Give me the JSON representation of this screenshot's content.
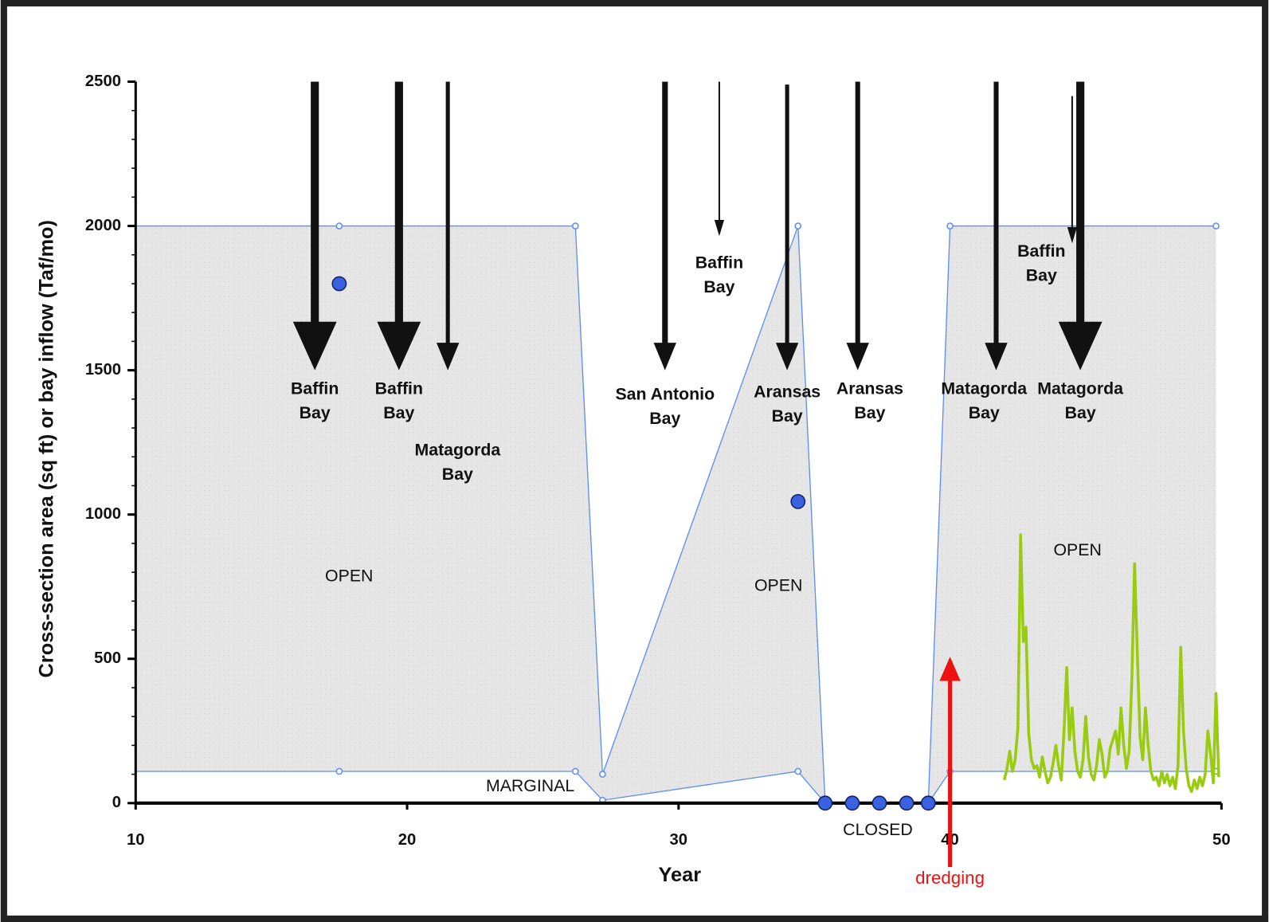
{
  "chart_data": {
    "type": "area",
    "xlabel": "Year",
    "ylabel": "Cross-section area (sq ft) or bay inflow (Taf/mo)",
    "xlim": [
      10,
      50
    ],
    "xticks": [
      10,
      20,
      30,
      40,
      50
    ],
    "ylim": [
      0,
      2500
    ],
    "yticks": [
      0,
      500,
      1000,
      1500,
      2000,
      2500
    ],
    "area": {
      "color": "#5b8ef0",
      "fill": "#e4e4e4",
      "x": [
        10,
        17.5,
        26.2,
        27.2,
        34.4,
        35.4,
        39.2,
        40,
        49.8
      ],
      "upper": [
        2000,
        2000,
        2000,
        100,
        2000,
        0,
        0,
        2000,
        2000
      ],
      "lower": [
        110,
        110,
        110,
        10,
        110,
        0,
        0,
        110,
        110
      ]
    },
    "points": {
      "color": "#3a62e0",
      "x": [
        17.5,
        34.4,
        35.4,
        36.4,
        37.4,
        38.4,
        39.2
      ],
      "values": [
        1800,
        1045,
        0,
        0,
        0,
        0,
        0
      ]
    },
    "inflow": {
      "color": "#99cc11",
      "x": [
        42.0,
        42.1,
        42.2,
        42.3,
        42.4,
        42.5,
        42.6,
        42.7,
        42.8,
        42.9,
        43.0,
        43.1,
        43.2,
        43.3,
        43.4,
        43.5,
        43.6,
        43.7,
        43.8,
        43.9,
        44.0,
        44.1,
        44.2,
        44.3,
        44.4,
        44.5,
        44.6,
        44.7,
        44.8,
        44.9,
        45.0,
        45.1,
        45.2,
        45.3,
        45.4,
        45.5,
        45.6,
        45.7,
        45.8,
        45.9,
        46.0,
        46.1,
        46.2,
        46.3,
        46.4,
        46.5,
        46.6,
        46.7,
        46.8,
        46.9,
        47.0,
        47.1,
        47.2,
        47.3,
        47.4,
        47.5,
        47.6,
        47.7,
        47.8,
        47.9,
        48.0,
        48.1,
        48.2,
        48.3,
        48.4,
        48.5,
        48.6,
        48.7,
        48.8,
        48.9,
        49.0,
        49.1,
        49.2,
        49.3,
        49.4,
        49.5,
        49.6,
        49.7,
        49.8,
        49.9
      ],
      "values": [
        80,
        120,
        180,
        110,
        150,
        260,
        930,
        560,
        610,
        240,
        150,
        120,
        130,
        90,
        160,
        110,
        70,
        90,
        140,
        200,
        130,
        80,
        250,
        470,
        220,
        330,
        180,
        110,
        90,
        150,
        300,
        160,
        100,
        80,
        130,
        220,
        170,
        90,
        110,
        190,
        220,
        250,
        170,
        330,
        200,
        120,
        180,
        430,
        830,
        520,
        230,
        150,
        330,
        200,
        110,
        80,
        90,
        60,
        110,
        70,
        100,
        60,
        90,
        50,
        130,
        540,
        250,
        120,
        60,
        40,
        80,
        50,
        90,
        60,
        100,
        250,
        170,
        70,
        380,
        90
      ]
    },
    "arrows": [
      {
        "x": 16.6,
        "from": 2500,
        "to": 1500,
        "label": [
          "Baffin",
          "Bay"
        ]
      },
      {
        "x": 19.7,
        "from": 2500,
        "to": 1500,
        "label": [
          "Baffin",
          "Bay"
        ]
      },
      {
        "x": 21.5,
        "from": 2500,
        "to": 1500,
        "label": [
          "Matagorda",
          "Bay"
        ]
      },
      {
        "x": 29.5,
        "from": 2500,
        "to": 1500,
        "label": [
          "San Antonio",
          "Bay"
        ]
      },
      {
        "x": 31.5,
        "from": 2500,
        "to": 1965,
        "label": [
          "Baffin",
          "Bay"
        ]
      },
      {
        "x": 34.0,
        "from": 2490,
        "to": 1500,
        "label": [
          "Aransas",
          "Bay"
        ]
      },
      {
        "x": 36.6,
        "from": 2500,
        "to": 1500,
        "label": [
          "Aransas",
          "Bay"
        ]
      },
      {
        "x": 41.7,
        "from": 2500,
        "to": 1500,
        "label": [
          "Matagorda",
          "Bay"
        ]
      },
      {
        "x": 44.8,
        "from": 2500,
        "to": 1500,
        "label": [
          "Matagorda",
          "Bay"
        ]
      },
      {
        "x": 44.5,
        "from": 2450,
        "to": 1940,
        "label": [
          "Baffin",
          "Bay"
        ]
      }
    ],
    "annotations": [
      "OPEN",
      "OPEN",
      "OPEN",
      "MARGINAL",
      "CLOSED"
    ],
    "dredging": {
      "label": "dredging",
      "x": 40,
      "color": "#ee1111"
    }
  }
}
